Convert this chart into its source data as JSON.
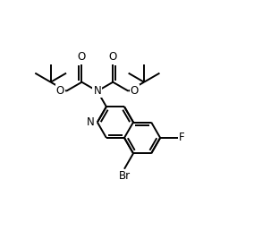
{
  "bg_color": "#ffffff",
  "line_color": "#000000",
  "lw": 1.4,
  "fs": 8.5,
  "BL": 0.19,
  "xlim": [
    -1.25,
    1.55
  ],
  "ylim": [
    -0.95,
    1.1
  ]
}
